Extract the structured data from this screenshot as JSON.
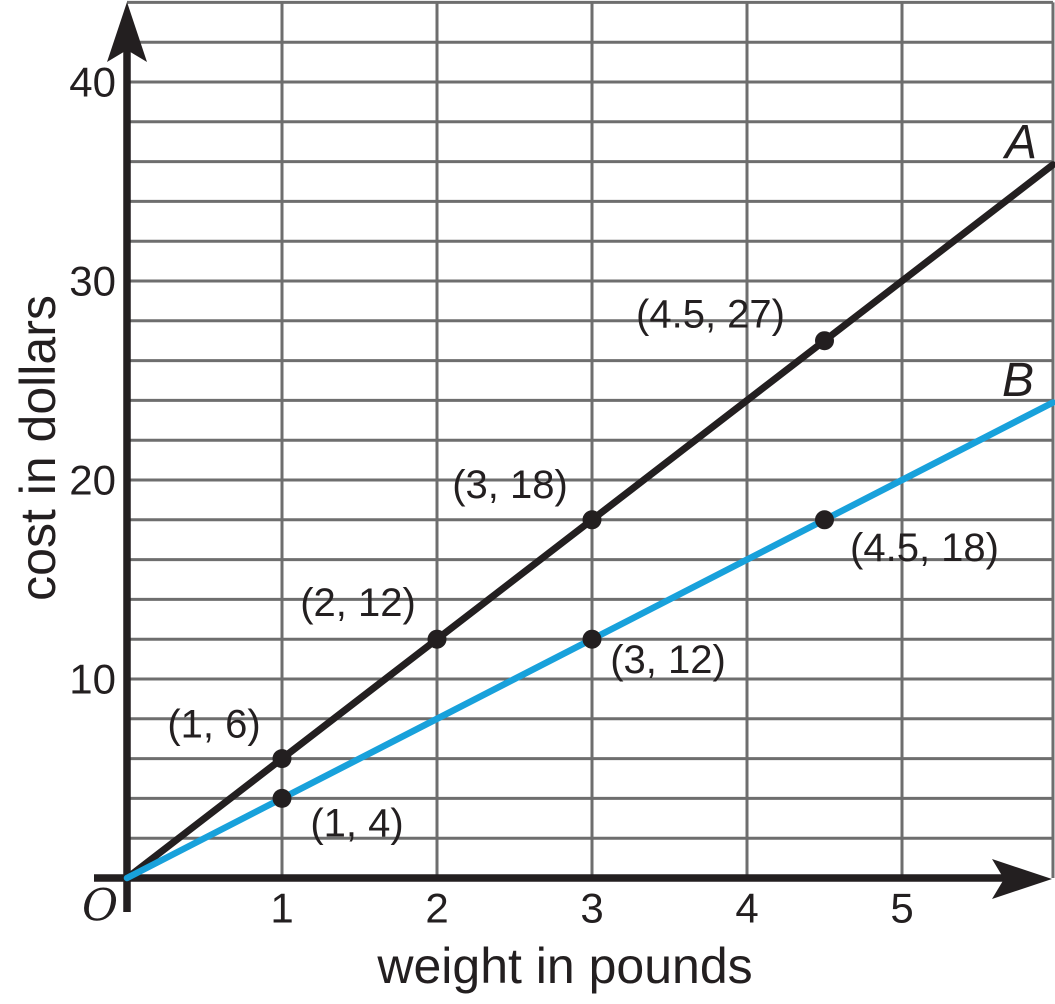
{
  "chart_data": {
    "type": "line",
    "title": "",
    "xlabel": "weight in pounds",
    "ylabel": "cost in dollars",
    "origin_label": "O",
    "xlim": [
      0,
      5.974
    ],
    "ylim": [
      0,
      44
    ],
    "x_ticks": [
      "1",
      "2",
      "3",
      "4",
      "5"
    ],
    "y_ticks": [
      "10",
      "20",
      "30",
      "40"
    ],
    "grid": true,
    "x_grid_lines": [
      1,
      2,
      3,
      4,
      5,
      5.974
    ],
    "y_grid_step": 2,
    "legend_position": "labels-at-line-ends",
    "point_color": "#231F20",
    "point_radius": 9.5,
    "colors": {
      "grid": "#6E6E6E",
      "axis": "#231F20",
      "text": "#231F20",
      "series_a": "#231F20",
      "series_b": "#18A1DB"
    },
    "series": [
      {
        "name": "A",
        "color": "#231F20",
        "slope": 6,
        "stroke_width": 7,
        "name_label_dx": -32,
        "name_label_dy": -22,
        "labeled_points": [
          {
            "x": 1,
            "y": 6,
            "label": "(1, 6)",
            "label_dx": -68,
            "label_dy": -34
          },
          {
            "x": 2,
            "y": 12,
            "label": "(2, 12)",
            "label_dx": -79,
            "label_dy": -36
          },
          {
            "x": 3,
            "y": 18,
            "label": "(3, 18)",
            "label_dx": -82,
            "label_dy": -35
          },
          {
            "x": 4.5,
            "y": 27,
            "label": "(4.5, 27)",
            "label_dx": -114,
            "label_dy": -26
          }
        ]
      },
      {
        "name": "B",
        "color": "#18A1DB",
        "slope": 4,
        "stroke_width": 6.5,
        "name_label_dx": -35,
        "name_label_dy": -22,
        "labeled_points": [
          {
            "x": 1,
            "y": 4,
            "label": "(1, 4)",
            "label_dx": 75,
            "label_dy": 25
          },
          {
            "x": 3,
            "y": 12,
            "label": "(3, 12)",
            "label_dx": 76,
            "label_dy": 21
          },
          {
            "x": 4.5,
            "y": 18,
            "label": "(4.5, 18)",
            "label_dx": 100,
            "label_dy": 28
          }
        ]
      }
    ]
  }
}
